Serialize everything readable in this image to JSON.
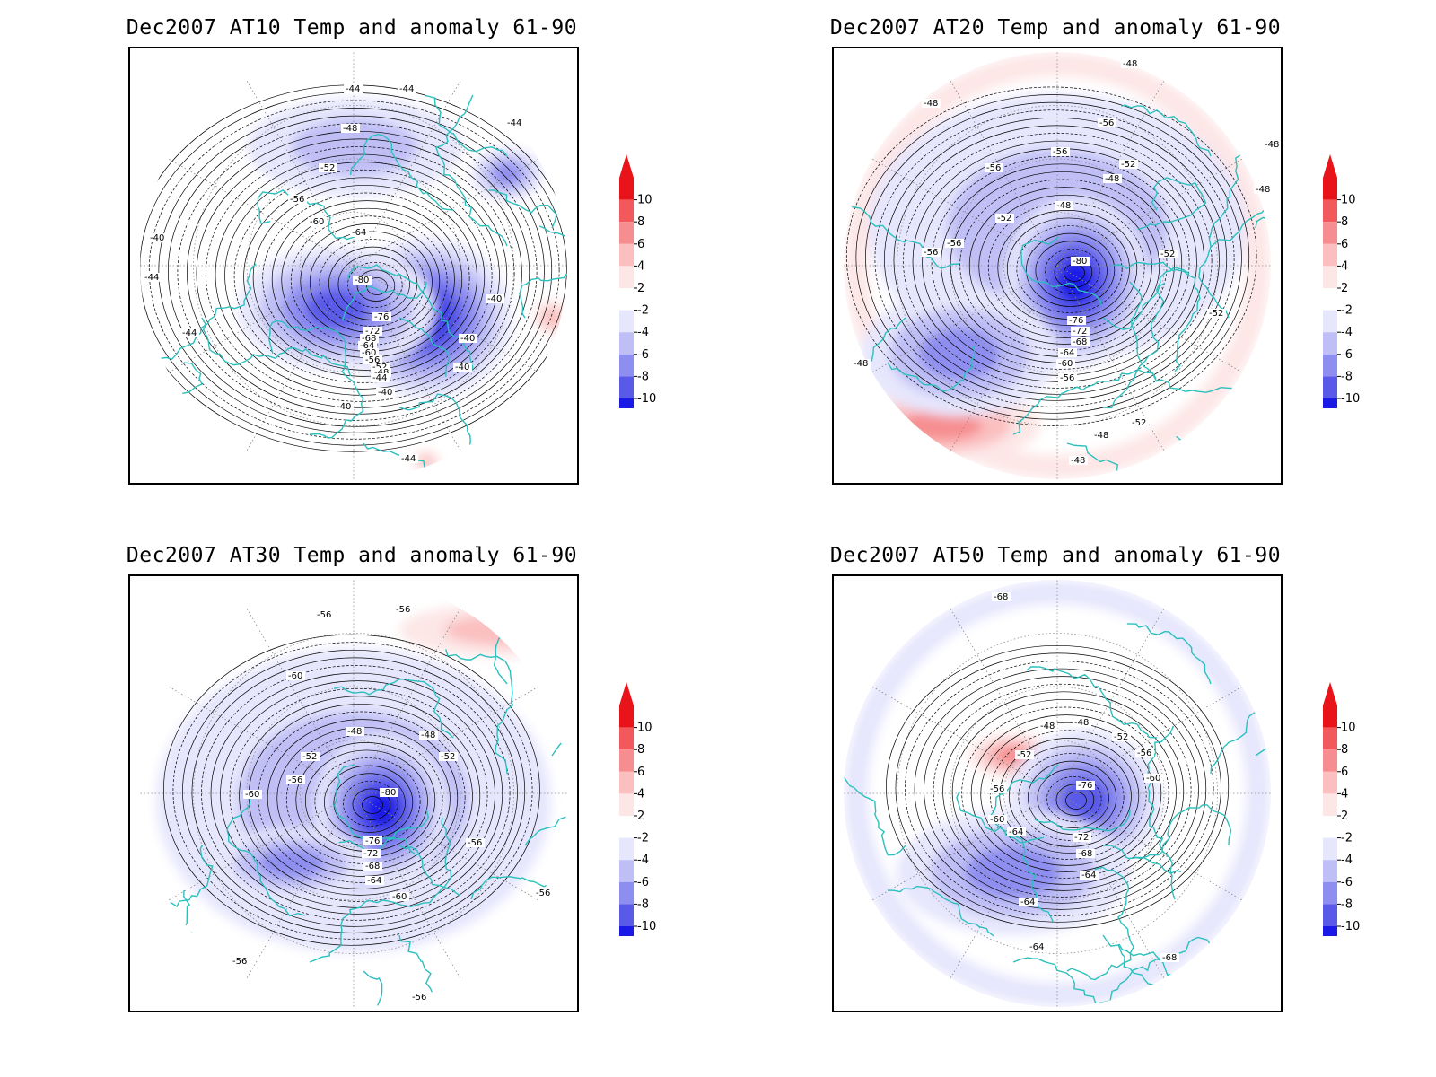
{
  "panels": [
    {
      "id": "at10",
      "title": "Dec2007 AT10 Temp and anomaly 61-90",
      "contour_labels": [
        "-44",
        "-44",
        "-44",
        "-48",
        "-52",
        "-56",
        "-60",
        "-64",
        "-80",
        "-76",
        "-72",
        "-68",
        "-64",
        "-60",
        "-56",
        "-52",
        "-48",
        "-44",
        "-40",
        "-40",
        "-40",
        "-40",
        "-40",
        "-40",
        "-44",
        "-44",
        "-44"
      ],
      "anomaly_blobs": [
        {
          "sign": "neg",
          "strength": 1
        },
        {
          "sign": "neg",
          "strength": 2
        },
        {
          "sign": "neg",
          "strength": 4
        },
        {
          "sign": "neg",
          "strength": 3
        },
        {
          "sign": "pos",
          "strength": 1
        },
        {
          "sign": "pos",
          "strength": 1
        }
      ]
    },
    {
      "id": "at20",
      "title": "Dec2007 AT20 Temp and anomaly 61-90",
      "contour_labels": [
        "-48",
        "-48",
        "-56",
        "-56",
        "-56",
        "-52",
        "-48",
        "-48",
        "-52",
        "-56",
        "-56",
        "-80",
        "-52",
        "-52",
        "-76",
        "-72",
        "-68",
        "-64",
        "-60",
        "-56",
        "-48",
        "-52",
        "-48",
        "-48",
        "-48",
        "-48"
      ],
      "anomaly_blobs": [
        {
          "sign": "pos",
          "strength": 1
        },
        {
          "sign": "pos",
          "strength": 2
        },
        {
          "sign": "neg",
          "strength": 1
        },
        {
          "sign": "neg",
          "strength": 4
        },
        {
          "sign": "neg",
          "strength": 2
        }
      ]
    },
    {
      "id": "at30",
      "title": "Dec2007 AT30 Temp and anomaly 61-90",
      "contour_labels": [
        "-56",
        "-56",
        "-60",
        "-48",
        "-48",
        "-52",
        "-52",
        "-56",
        "-60",
        "-80",
        "-76",
        "-72",
        "-68",
        "-64",
        "-60",
        "-56",
        "-56",
        "-56",
        "-56"
      ],
      "anomaly_blobs": [
        {
          "sign": "pos",
          "strength": 1
        },
        {
          "sign": "pos",
          "strength": 2
        },
        {
          "sign": "neg",
          "strength": 1
        },
        {
          "sign": "neg",
          "strength": 4
        },
        {
          "sign": "neg",
          "strength": 2
        }
      ]
    },
    {
      "id": "at50",
      "title": "Dec2007 AT50 Temp and anomaly 61-90",
      "contour_labels": [
        "-68",
        "-48",
        "-48",
        "-52",
        "-56",
        "-60",
        "-64",
        "-52",
        "-56",
        "-60",
        "-76",
        "-72",
        "-68",
        "-64",
        "-64",
        "-64",
        "-68"
      ],
      "anomaly_blobs": [
        {
          "sign": "neg",
          "strength": 1
        },
        {
          "sign": "pos",
          "strength": 2
        },
        {
          "sign": "neg",
          "strength": 3
        },
        {
          "sign": "neg",
          "strength": 2
        }
      ]
    }
  ],
  "colorbar": {
    "labels": [
      "10",
      "8",
      "6",
      "4",
      "2",
      "-2",
      "-4",
      "-6",
      "-8",
      "-10"
    ],
    "colors": [
      "#e8141a",
      "#f2595d",
      "#f68e90",
      "#fbbfc0",
      "#fde6e6",
      "#ffffff",
      "#e6e6fd",
      "#bfbff6",
      "#8e8ef0",
      "#5a5ae8",
      "#1a1ae6"
    ],
    "top_color": "#e8141a",
    "bottom_color": "#1a1ae6"
  }
}
